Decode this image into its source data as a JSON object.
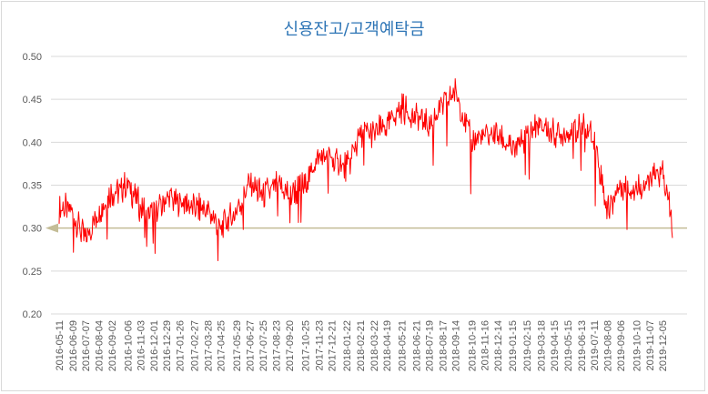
{
  "chart_data": {
    "type": "line",
    "title": "신용잔고/고객예탁금",
    "xlabel": "",
    "ylabel": "",
    "ylim": [
      0.2,
      0.5
    ],
    "y_ticks": [
      "0.20",
      "0.25",
      "0.30",
      "0.35",
      "0.40",
      "0.45",
      "0.50"
    ],
    "x_ticks": [
      "2016-05-11",
      "2016-06-09",
      "2016-07-07",
      "2016-08-04",
      "2016-09-02",
      "2016-10-06",
      "2016-11-03",
      "2016-12-01",
      "2016-12-29",
      "2017-01-26",
      "2017-02-27",
      "2017-03-28",
      "2017-04-25",
      "2017-05-29",
      "2017-06-27",
      "2017-07-25",
      "2017-08-23",
      "2017-09-20",
      "2017-10-25",
      "2017-11-23",
      "2017-12-21",
      "2018-01-22",
      "2018-02-21",
      "2018-03-22",
      "2018-04-19",
      "2018-05-21",
      "2018-06-21",
      "2018-07-19",
      "2018-08-17",
      "2018-09-14",
      "2018-10-19",
      "2018-11-16",
      "2018-12-14",
      "2019-01-15",
      "2019-02-15",
      "2019-03-18",
      "2019-04-15",
      "2019-05-15",
      "2019-06-13",
      "2019-07-11",
      "2019-08-08",
      "2019-09-06",
      "2019-10-10",
      "2019-11-07",
      "2019-12-05"
    ],
    "grid": true,
    "series": [
      {
        "color": "#ff0000",
        "x": [
          "2016-05-11",
          "2016-06-09",
          "2016-07-07",
          "2016-08-04",
          "2016-09-02",
          "2016-10-06",
          "2016-11-03",
          "2016-12-01",
          "2016-12-29",
          "2017-01-26",
          "2017-02-27",
          "2017-03-28",
          "2017-04-25",
          "2017-05-29",
          "2017-06-27",
          "2017-07-25",
          "2017-08-23",
          "2017-09-20",
          "2017-10-25",
          "2017-11-23",
          "2017-12-21",
          "2018-01-22",
          "2018-02-21",
          "2018-03-22",
          "2018-04-19",
          "2018-05-21",
          "2018-06-21",
          "2018-07-19",
          "2018-08-17",
          "2018-09-14",
          "2018-10-19",
          "2018-11-16",
          "2018-12-14",
          "2019-01-15",
          "2019-02-15",
          "2019-03-18",
          "2019-04-15",
          "2019-05-15",
          "2019-06-13",
          "2019-07-11",
          "2019-08-08",
          "2019-09-06",
          "2019-10-10",
          "2019-11-07",
          "2019-12-05",
          "2019-12-27"
        ],
        "values": [
          0.325,
          0.32,
          0.285,
          0.32,
          0.34,
          0.35,
          0.325,
          0.315,
          0.335,
          0.33,
          0.325,
          0.32,
          0.3,
          0.32,
          0.35,
          0.34,
          0.35,
          0.34,
          0.35,
          0.385,
          0.38,
          0.37,
          0.41,
          0.41,
          0.42,
          0.44,
          0.43,
          0.42,
          0.44,
          0.46,
          0.4,
          0.41,
          0.41,
          0.39,
          0.41,
          0.42,
          0.41,
          0.41,
          0.42,
          0.405,
          0.32,
          0.35,
          0.345,
          0.355,
          0.365,
          0.3
        ]
      }
    ],
    "reference_line": {
      "value": 0.3,
      "color": "#c4bd97"
    }
  }
}
